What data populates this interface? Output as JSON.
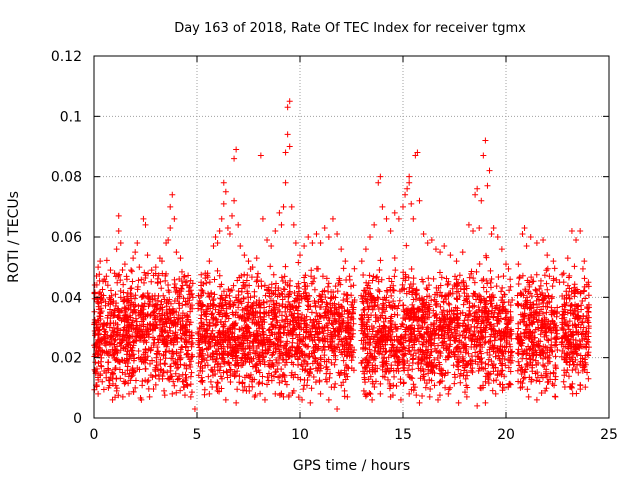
{
  "chart_data": {
    "type": "scatter",
    "title": "Day 163 of 2018, Rate Of TEC Index for receiver tgmx",
    "xlabel": "GPS time / hours",
    "ylabel": "ROTI / TECUs",
    "xlim": [
      0,
      25
    ],
    "ylim": [
      0,
      0.12
    ],
    "x_ticks": [
      "0",
      "5",
      "10",
      "15",
      "20",
      "25"
    ],
    "y_ticks": [
      "0",
      "0.02",
      "0.04",
      "0.06",
      "0.08",
      "0.1",
      "0.12"
    ],
    "x_tick_values": [
      0,
      5,
      10,
      15,
      20,
      25
    ],
    "y_tick_values": [
      0,
      0.02,
      0.04,
      0.06,
      0.08,
      0.1,
      0.12
    ],
    "grid": true,
    "marker": "plus",
    "marker_color": "#ff0000",
    "series": [
      {
        "name": "",
        "points": [
          [
            0.2,
            0.05
          ],
          [
            0.3,
            0.052
          ],
          [
            0.5,
            0.046
          ],
          [
            0.6,
            0.047
          ],
          [
            0.8,
            0.049
          ],
          [
            1.0,
            0.048
          ],
          [
            1.1,
            0.056
          ],
          [
            1.2,
            0.062
          ],
          [
            1.2,
            0.067
          ],
          [
            1.3,
            0.058
          ],
          [
            1.5,
            0.051
          ],
          [
            1.6,
            0.046
          ],
          [
            1.8,
            0.049
          ],
          [
            1.9,
            0.053
          ],
          [
            2.0,
            0.055
          ],
          [
            2.1,
            0.058
          ],
          [
            2.2,
            0.05
          ],
          [
            2.4,
            0.066
          ],
          [
            2.5,
            0.064
          ],
          [
            2.6,
            0.054
          ],
          [
            2.8,
            0.049
          ],
          [
            3.0,
            0.05
          ],
          [
            3.1,
            0.045
          ],
          [
            3.2,
            0.053
          ],
          [
            3.3,
            0.052
          ],
          [
            3.5,
            0.058
          ],
          [
            3.6,
            0.059
          ],
          [
            3.7,
            0.063
          ],
          [
            3.7,
            0.07
          ],
          [
            3.8,
            0.074
          ],
          [
            3.9,
            0.066
          ],
          [
            4.0,
            0.055
          ],
          [
            4.2,
            0.053
          ],
          [
            4.4,
            0.047
          ],
          [
            4.6,
            0.042
          ],
          [
            4.8,
            0.04
          ],
          [
            5.2,
            0.045
          ],
          [
            5.4,
            0.048
          ],
          [
            5.6,
            0.052
          ],
          [
            5.8,
            0.057
          ],
          [
            5.9,
            0.06
          ],
          [
            6.0,
            0.058
          ],
          [
            6.1,
            0.062
          ],
          [
            6.2,
            0.066
          ],
          [
            6.3,
            0.071
          ],
          [
            6.3,
            0.078
          ],
          [
            6.4,
            0.075
          ],
          [
            6.5,
            0.063
          ],
          [
            6.6,
            0.061
          ],
          [
            6.7,
            0.067
          ],
          [
            6.8,
            0.072
          ],
          [
            6.8,
            0.086
          ],
          [
            6.9,
            0.089
          ],
          [
            7.0,
            0.064
          ],
          [
            7.1,
            0.057
          ],
          [
            7.3,
            0.054
          ],
          [
            7.5,
            0.052
          ],
          [
            7.7,
            0.05
          ],
          [
            7.9,
            0.053
          ],
          [
            8.1,
            0.087
          ],
          [
            8.2,
            0.066
          ],
          [
            8.4,
            0.059
          ],
          [
            8.6,
            0.057
          ],
          [
            8.8,
            0.062
          ],
          [
            9.0,
            0.068
          ],
          [
            9.1,
            0.064
          ],
          [
            9.2,
            0.07
          ],
          [
            9.3,
            0.078
          ],
          [
            9.3,
            0.088
          ],
          [
            9.4,
            0.094
          ],
          [
            9.4,
            0.103
          ],
          [
            9.5,
            0.105
          ],
          [
            9.5,
            0.09
          ],
          [
            9.6,
            0.07
          ],
          [
            9.7,
            0.064
          ],
          [
            9.8,
            0.058
          ],
          [
            10.0,
            0.054
          ],
          [
            10.2,
            0.057
          ],
          [
            10.4,
            0.06
          ],
          [
            10.6,
            0.058
          ],
          [
            10.8,
            0.061
          ],
          [
            11.0,
            0.058
          ],
          [
            11.2,
            0.063
          ],
          [
            11.4,
            0.06
          ],
          [
            11.6,
            0.066
          ],
          [
            11.8,
            0.061
          ],
          [
            12.0,
            0.056
          ],
          [
            12.2,
            0.052
          ],
          [
            12.4,
            0.047
          ],
          [
            12.6,
            0.044
          ],
          [
            13.0,
            0.052
          ],
          [
            13.2,
            0.056
          ],
          [
            13.4,
            0.06
          ],
          [
            13.6,
            0.064
          ],
          [
            13.8,
            0.078
          ],
          [
            13.9,
            0.08
          ],
          [
            14.0,
            0.07
          ],
          [
            14.2,
            0.066
          ],
          [
            14.4,
            0.062
          ],
          [
            14.6,
            0.068
          ],
          [
            14.8,
            0.066
          ],
          [
            15.0,
            0.07
          ],
          [
            15.1,
            0.074
          ],
          [
            15.2,
            0.076
          ],
          [
            15.3,
            0.078
          ],
          [
            15.3,
            0.08
          ],
          [
            15.4,
            0.071
          ],
          [
            15.5,
            0.066
          ],
          [
            15.6,
            0.087
          ],
          [
            15.7,
            0.088
          ],
          [
            15.8,
            0.072
          ],
          [
            16.0,
            0.061
          ],
          [
            16.2,
            0.058
          ],
          [
            16.4,
            0.059
          ],
          [
            16.6,
            0.056
          ],
          [
            16.8,
            0.055
          ],
          [
            17.0,
            0.057
          ],
          [
            17.3,
            0.054
          ],
          [
            17.6,
            0.052
          ],
          [
            17.9,
            0.055
          ],
          [
            18.2,
            0.064
          ],
          [
            18.4,
            0.062
          ],
          [
            18.5,
            0.074
          ],
          [
            18.6,
            0.076
          ],
          [
            18.7,
            0.063
          ],
          [
            18.8,
            0.072
          ],
          [
            18.9,
            0.087
          ],
          [
            19.0,
            0.092
          ],
          [
            19.1,
            0.077
          ],
          [
            19.2,
            0.082
          ],
          [
            19.3,
            0.061
          ],
          [
            19.4,
            0.063
          ],
          [
            19.6,
            0.06
          ],
          [
            19.8,
            0.056
          ],
          [
            20.0,
            0.051
          ],
          [
            20.2,
            0.046
          ],
          [
            20.6,
            0.051
          ],
          [
            20.8,
            0.061
          ],
          [
            20.9,
            0.063
          ],
          [
            21.0,
            0.057
          ],
          [
            21.2,
            0.06
          ],
          [
            21.5,
            0.058
          ],
          [
            21.8,
            0.059
          ],
          [
            22.0,
            0.054
          ],
          [
            22.3,
            0.052
          ],
          [
            22.6,
            0.045
          ],
          [
            22.8,
            0.048
          ],
          [
            23.0,
            0.053
          ],
          [
            23.2,
            0.062
          ],
          [
            23.4,
            0.059
          ],
          [
            23.6,
            0.062
          ],
          [
            23.8,
            0.052
          ],
          [
            24.0,
            0.045
          ],
          [
            0.1,
            0.015
          ],
          [
            0.2,
            0.008
          ],
          [
            0.4,
            0.012
          ],
          [
            0.7,
            0.01
          ],
          [
            0.9,
            0.006
          ],
          [
            1.1,
            0.009
          ],
          [
            1.4,
            0.007
          ],
          [
            1.7,
            0.008
          ],
          [
            2.0,
            0.01
          ],
          [
            2.3,
            0.006
          ],
          [
            2.7,
            0.007
          ],
          [
            3.0,
            0.011
          ],
          [
            3.4,
            0.009
          ],
          [
            3.8,
            0.008
          ],
          [
            4.3,
            0.012
          ],
          [
            4.7,
            0.007
          ],
          [
            4.9,
            0.003
          ],
          [
            5.6,
            0.008
          ],
          [
            6.0,
            0.009
          ],
          [
            6.4,
            0.006
          ],
          [
            6.9,
            0.005
          ],
          [
            7.4,
            0.009
          ],
          [
            7.8,
            0.007
          ],
          [
            8.3,
            0.006
          ],
          [
            8.8,
            0.008
          ],
          [
            9.2,
            0.007
          ],
          [
            9.7,
            0.009
          ],
          [
            10.1,
            0.006
          ],
          [
            10.5,
            0.005
          ],
          [
            11.0,
            0.008
          ],
          [
            11.4,
            0.006
          ],
          [
            11.8,
            0.003
          ],
          [
            12.3,
            0.007
          ],
          [
            13.1,
            0.009
          ],
          [
            13.5,
            0.006
          ],
          [
            13.9,
            0.008
          ],
          [
            14.4,
            0.007
          ],
          [
            14.9,
            0.006
          ],
          [
            15.3,
            0.008
          ],
          [
            15.8,
            0.005
          ],
          [
            16.3,
            0.007
          ],
          [
            16.7,
            0.006
          ],
          [
            17.2,
            0.008
          ],
          [
            17.7,
            0.005
          ],
          [
            18.1,
            0.007
          ],
          [
            18.6,
            0.004
          ],
          [
            19.0,
            0.005
          ],
          [
            19.5,
            0.008
          ],
          [
            19.9,
            0.01
          ],
          [
            20.7,
            0.01
          ],
          [
            21.1,
            0.007
          ],
          [
            21.5,
            0.006
          ],
          [
            21.9,
            0.009
          ],
          [
            22.4,
            0.007
          ],
          [
            22.8,
            0.012
          ],
          [
            23.2,
            0.01
          ],
          [
            23.6,
            0.011
          ],
          [
            24.0,
            0.013
          ]
        ]
      }
    ],
    "band_spans": [
      [
        0.0,
        4.8
      ],
      [
        5.05,
        12.65
      ],
      [
        12.95,
        20.3
      ],
      [
        20.55,
        22.5
      ],
      [
        22.7,
        24.05
      ]
    ]
  }
}
